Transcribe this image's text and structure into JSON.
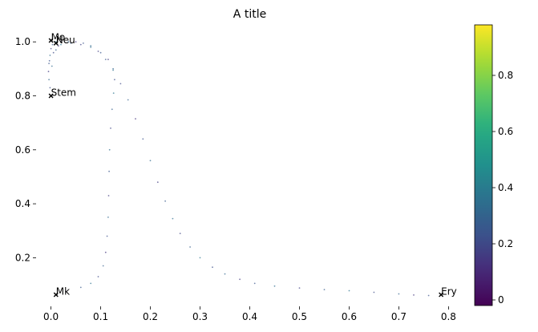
{
  "chart_data": {
    "type": "scatter",
    "title": "A title",
    "xlabel": "",
    "ylabel": "",
    "xlim": [
      -0.03,
      0.83
    ],
    "ylim": [
      0.02,
      1.06
    ],
    "xticks": [
      0.0,
      0.1,
      0.2,
      0.3,
      0.4,
      0.5,
      0.6,
      0.7,
      0.8
    ],
    "xtick_labels": [
      "0.0",
      "0.1",
      "0.2",
      "0.3",
      "0.4",
      "0.5",
      "0.6",
      "0.7",
      "0.8"
    ],
    "yticks": [
      0.2,
      0.4,
      0.6,
      0.8,
      1.0
    ],
    "ytick_labels": [
      "0.2",
      "0.4",
      "0.6",
      "0.8",
      "1.0"
    ],
    "grid": false,
    "axes_frame": false,
    "colormap": "viridis",
    "colorbar": {
      "range": [
        -0.02,
        0.98
      ],
      "ticks": [
        0,
        0.2,
        0.4,
        0.6,
        0.8
      ],
      "tick_labels": [
        "0",
        "0.2",
        "0.4",
        "0.6",
        "0.8"
      ]
    },
    "nodes": [
      {
        "label": "Mo",
        "x": 0.0,
        "y": 1.005
      },
      {
        "label": "Neu",
        "x": 0.01,
        "y": 0.995
      },
      {
        "label": "Stem",
        "x": 0.0,
        "y": 0.8
      },
      {
        "label": "Mk",
        "x": 0.01,
        "y": 0.063
      },
      {
        "label": "Ery",
        "x": 0.785,
        "y": 0.063
      }
    ],
    "trajectory_points": [
      [
        0.0,
        0.8
      ],
      [
        -0.002,
        0.83
      ],
      [
        -0.004,
        0.86
      ],
      [
        -0.005,
        0.89
      ],
      [
        -0.004,
        0.92
      ],
      [
        -0.002,
        0.95
      ],
      [
        0.0,
        0.975
      ],
      [
        0.003,
        0.99
      ],
      [
        0.01,
        1.0
      ],
      [
        0.02,
        1.0
      ],
      [
        0.035,
        1.0
      ],
      [
        0.05,
        1.0
      ],
      [
        0.065,
        0.995
      ],
      [
        0.08,
        0.985
      ],
      [
        0.095,
        0.965
      ],
      [
        0.11,
        0.935
      ],
      [
        0.125,
        0.895
      ],
      [
        0.14,
        0.845
      ],
      [
        0.155,
        0.785
      ],
      [
        0.17,
        0.715
      ],
      [
        0.185,
        0.64
      ],
      [
        0.2,
        0.56
      ],
      [
        0.215,
        0.48
      ],
      [
        0.23,
        0.41
      ],
      [
        0.245,
        0.345
      ],
      [
        0.26,
        0.29
      ],
      [
        0.28,
        0.24
      ],
      [
        0.3,
        0.2
      ],
      [
        0.325,
        0.165
      ],
      [
        0.35,
        0.14
      ],
      [
        0.38,
        0.12
      ],
      [
        0.41,
        0.105
      ],
      [
        0.45,
        0.095
      ],
      [
        0.5,
        0.088
      ],
      [
        0.55,
        0.082
      ],
      [
        0.6,
        0.078
      ],
      [
        0.65,
        0.072
      ],
      [
        0.7,
        0.066
      ],
      [
        0.73,
        0.062
      ],
      [
        0.76,
        0.06
      ],
      [
        0.785,
        0.063
      ],
      [
        0.03,
        0.075
      ],
      [
        0.06,
        0.09
      ],
      [
        0.08,
        0.105
      ],
      [
        0.095,
        0.13
      ],
      [
        0.105,
        0.17
      ],
      [
        0.11,
        0.22
      ],
      [
        0.113,
        0.28
      ],
      [
        0.115,
        0.35
      ],
      [
        0.116,
        0.43
      ],
      [
        0.117,
        0.52
      ],
      [
        0.118,
        0.6
      ],
      [
        0.12,
        0.68
      ],
      [
        0.123,
        0.75
      ],
      [
        0.126,
        0.81
      ],
      [
        0.128,
        0.86
      ],
      [
        0.125,
        0.9
      ],
      [
        0.115,
        0.935
      ],
      [
        0.1,
        0.96
      ],
      [
        0.08,
        0.98
      ],
      [
        0.06,
        0.99
      ],
      [
        0.04,
        0.995
      ],
      [
        0.02,
        0.99
      ],
      [
        0.005,
        0.96
      ],
      [
        0.01,
        0.97
      ],
      [
        0.015,
        0.985
      ],
      [
        -0.003,
        0.93
      ],
      [
        0.002,
        0.91
      ]
    ]
  }
}
